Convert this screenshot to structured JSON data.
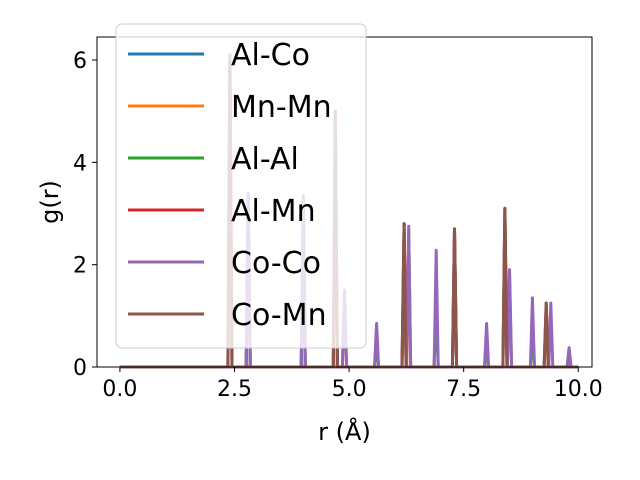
{
  "chart_data": {
    "type": "line",
    "xlabel": "r (Å)",
    "ylabel": "g(r)",
    "xlim": [
      -0.5,
      10.3
    ],
    "ylim": [
      0,
      6.45
    ],
    "xticks": [
      0.0,
      2.5,
      5.0,
      7.5,
      10.0
    ],
    "xtick_labels": [
      "0.0",
      "2.5",
      "5.0",
      "7.5",
      "10.0"
    ],
    "yticks": [
      0,
      2,
      4,
      6
    ],
    "ytick_labels": [
      "0",
      "2",
      "4",
      "6"
    ],
    "grid": false,
    "legend_position": "top-left",
    "series": [
      {
        "name": "Al-Co",
        "color": "#1f77b4",
        "peaks": [
          [
            2.4,
            6.1
          ],
          [
            2.8,
            3.4
          ],
          [
            4.0,
            3.35
          ],
          [
            4.7,
            5.0
          ],
          [
            6.2,
            2.8
          ],
          [
            7.3,
            2.7
          ],
          [
            8.4,
            3.1
          ]
        ]
      },
      {
        "name": "Mn-Mn",
        "color": "#ff7f0e",
        "peaks": [
          [
            2.8,
            3.3
          ],
          [
            4.0,
            3.3
          ],
          [
            4.9,
            1.5
          ],
          [
            6.3,
            2.7
          ],
          [
            8.5,
            1.9
          ]
        ]
      },
      {
        "name": "Al-Al",
        "color": "#2ca02c",
        "peaks": [
          [
            2.8,
            3.3
          ],
          [
            4.0,
            1.9
          ],
          [
            5.6,
            0.45
          ],
          [
            6.9,
            1.15
          ],
          [
            8.0,
            0.42
          ],
          [
            9.0,
            0.65
          ],
          [
            9.8,
            0.2
          ]
        ]
      },
      {
        "name": "Al-Mn",
        "color": "#d62728",
        "peaks": [
          [
            2.4,
            6.1
          ],
          [
            4.7,
            5.0
          ],
          [
            6.2,
            2.8
          ],
          [
            7.3,
            2.7
          ],
          [
            8.4,
            3.1
          ],
          [
            9.3,
            1.25
          ]
        ]
      },
      {
        "name": "Co-Co",
        "color": "#9467bd",
        "peaks": [
          [
            2.8,
            3.4
          ],
          [
            4.0,
            3.35
          ],
          [
            4.9,
            1.5
          ],
          [
            5.6,
            0.85
          ],
          [
            6.3,
            2.75
          ],
          [
            6.9,
            2.28
          ],
          [
            8.0,
            0.85
          ],
          [
            8.5,
            1.9
          ],
          [
            9.0,
            1.35
          ],
          [
            9.4,
            1.25
          ],
          [
            9.8,
            0.38
          ]
        ]
      },
      {
        "name": "Co-Mn",
        "color": "#8c564b",
        "peaks": [
          [
            2.4,
            6.1
          ],
          [
            4.7,
            5.0
          ],
          [
            6.2,
            2.8
          ],
          [
            7.3,
            2.7
          ],
          [
            8.4,
            3.1
          ],
          [
            9.3,
            1.25
          ]
        ]
      }
    ]
  }
}
